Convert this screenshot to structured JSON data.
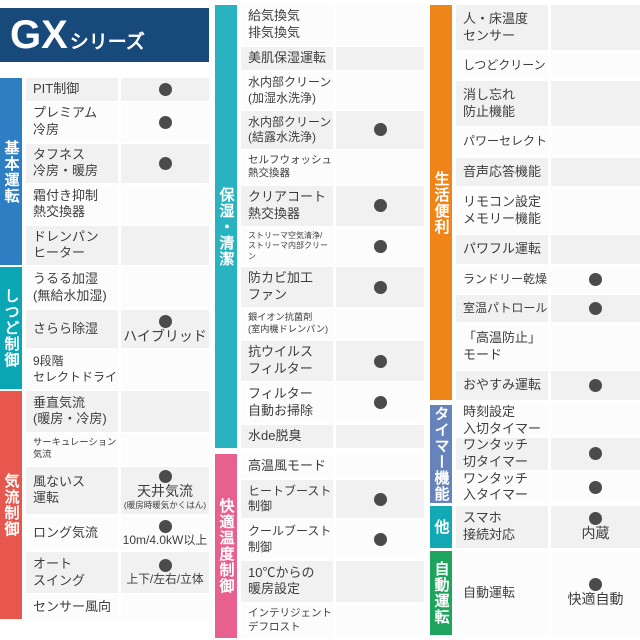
{
  "title": {
    "brand": "GX",
    "suffix": "シリーズ"
  },
  "colors": {
    "header_bg": "#17497b",
    "dot": "#4b4b4b",
    "row_shade": "#f1f1f1",
    "row_light": "#fcfcfc"
  },
  "columns": [
    {
      "sections": [
        {
          "id": "kihon-unten",
          "label": "基本運転",
          "color": "#2e7ec4",
          "rows": [
            {
              "feature": "PIT制御",
              "dot": true
            },
            {
              "feature": "プレミアム\n冷房",
              "dot": true
            },
            {
              "feature": "タフネス\n冷房・暖房",
              "dot": true
            },
            {
              "feature": "霜付き抑制\n熱交換器",
              "dot": false
            },
            {
              "feature": "ドレンパン\nヒーター",
              "dot": false
            }
          ]
        },
        {
          "id": "shitsudo-seigyo",
          "label": "しつど制御",
          "color": "#0aa6b4",
          "rows": [
            {
              "feature": "うるる加湿\n(無給水加湿)",
              "dot": false
            },
            {
              "feature": "さらら除湿",
              "dot": true,
              "value_label": "ハイブリッド"
            },
            {
              "feature": "9段階\nセレクトドライ",
              "dot": false
            }
          ]
        },
        {
          "id": "kiryu-seigyo",
          "label": "気流制御",
          "color": "#e7574e",
          "rows": [
            {
              "feature": "垂直気流\n(暖房・冷房)",
              "dot": false
            },
            {
              "feature": "サーキュレーション\n気流",
              "dot": false
            },
            {
              "feature": "風ないス\n運転",
              "dot": true,
              "value_label": "天井気流",
              "value_sub": "(暖房時暖気かくはん)"
            },
            {
              "feature": "ロング気流",
              "dot": true,
              "value_label": "10m/4.0kW以上"
            },
            {
              "feature": "オート\nスイング",
              "dot": true,
              "value_label": "上下/左右/立体"
            },
            {
              "feature": "センサー風向",
              "dot": false
            }
          ]
        }
      ]
    },
    {
      "sections": [
        {
          "id": "hoshitsu-seiketsu",
          "label": "保湿・清潔",
          "color": "#29b2c0",
          "rows": [
            {
              "feature": "給気換気\n排気換気",
              "dot": false
            },
            {
              "feature": "美肌保湿運転",
              "dot": false
            },
            {
              "feature": "水内部クリーン\n(加湿水洗浄)",
              "dot": false
            },
            {
              "feature": "水内部クリーン\n(結露水洗浄)",
              "dot": true
            },
            {
              "feature": "セルフウォッシュ\n熱交換器",
              "dot": false
            },
            {
              "feature": "クリアコート\n熱交換器",
              "dot": true
            },
            {
              "feature": "ストリーマ空気清浄/\nストリーマ内部クリーン",
              "dot": true
            },
            {
              "feature": "防カビ加工\nファン",
              "dot": true
            },
            {
              "feature": "銀イオン抗菌剤\n(室内機ドレンパン)",
              "dot": false
            },
            {
              "feature": "抗ウイルス\nフィルター",
              "dot": true
            },
            {
              "feature": "フィルター\n自動お掃除",
              "dot": true
            },
            {
              "feature": "水de脱臭",
              "dot": false
            }
          ]
        },
        {
          "id": "kaiteki-ondo-seigyo",
          "label": "快適温度制御",
          "color": "#e7608e",
          "rows": [
            {
              "feature": "高温風モード",
              "dot": false
            },
            {
              "feature": "ヒートブースト\n制御",
              "dot": true
            },
            {
              "feature": "クールブースト\n制御",
              "dot": true
            },
            {
              "feature": "10℃からの\n暖房設定",
              "dot": false
            },
            {
              "feature": "インテリジェント\nデフロスト",
              "dot": false
            }
          ]
        }
      ]
    },
    {
      "sections": [
        {
          "id": "seikatsu-benri",
          "label": "生活便利",
          "color": "#ef8519",
          "rows": [
            {
              "feature": "人・床温度\nセンサー",
              "dot": false
            },
            {
              "feature": "しつどクリーン",
              "dot": false
            },
            {
              "feature": "消し忘れ\n防止機能",
              "dot": false
            },
            {
              "feature": "パワーセレクト",
              "dot": false
            },
            {
              "feature": "音声応答機能",
              "dot": false
            },
            {
              "feature": "リモコン設定\nメモリー機能",
              "dot": false
            },
            {
              "feature": "パワフル運転",
              "dot": false
            },
            {
              "feature": "ランドリー乾燥",
              "dot": true
            },
            {
              "feature": "室温パトロール",
              "dot": true
            },
            {
              "feature": "「高温防止」\nモード",
              "dot": false
            },
            {
              "feature": "おやすみ運転",
              "dot": true
            }
          ]
        },
        {
          "id": "timer-kinou",
          "label": "タイマー機能",
          "color": "#6684bb",
          "rows": [
            {
              "feature": "時刻設定\n入切タイマー",
              "dot": false
            },
            {
              "feature": "ワンタッチ\n切タイマー",
              "dot": true
            },
            {
              "feature": "ワンタッチ\n入タイマー",
              "dot": true
            }
          ]
        },
        {
          "id": "hoka",
          "label": "他",
          "color": "#12a9b4",
          "rows": [
            {
              "feature": "スマホ\n接続対応",
              "dot": true,
              "value_label": "内蔵"
            }
          ]
        },
        {
          "id": "jidou-unten",
          "label": "自動運転",
          "color": "#1fa45e",
          "rows": [
            {
              "feature": "自動運転",
              "dot": true,
              "value_label": "快適自動"
            }
          ]
        }
      ]
    }
  ]
}
